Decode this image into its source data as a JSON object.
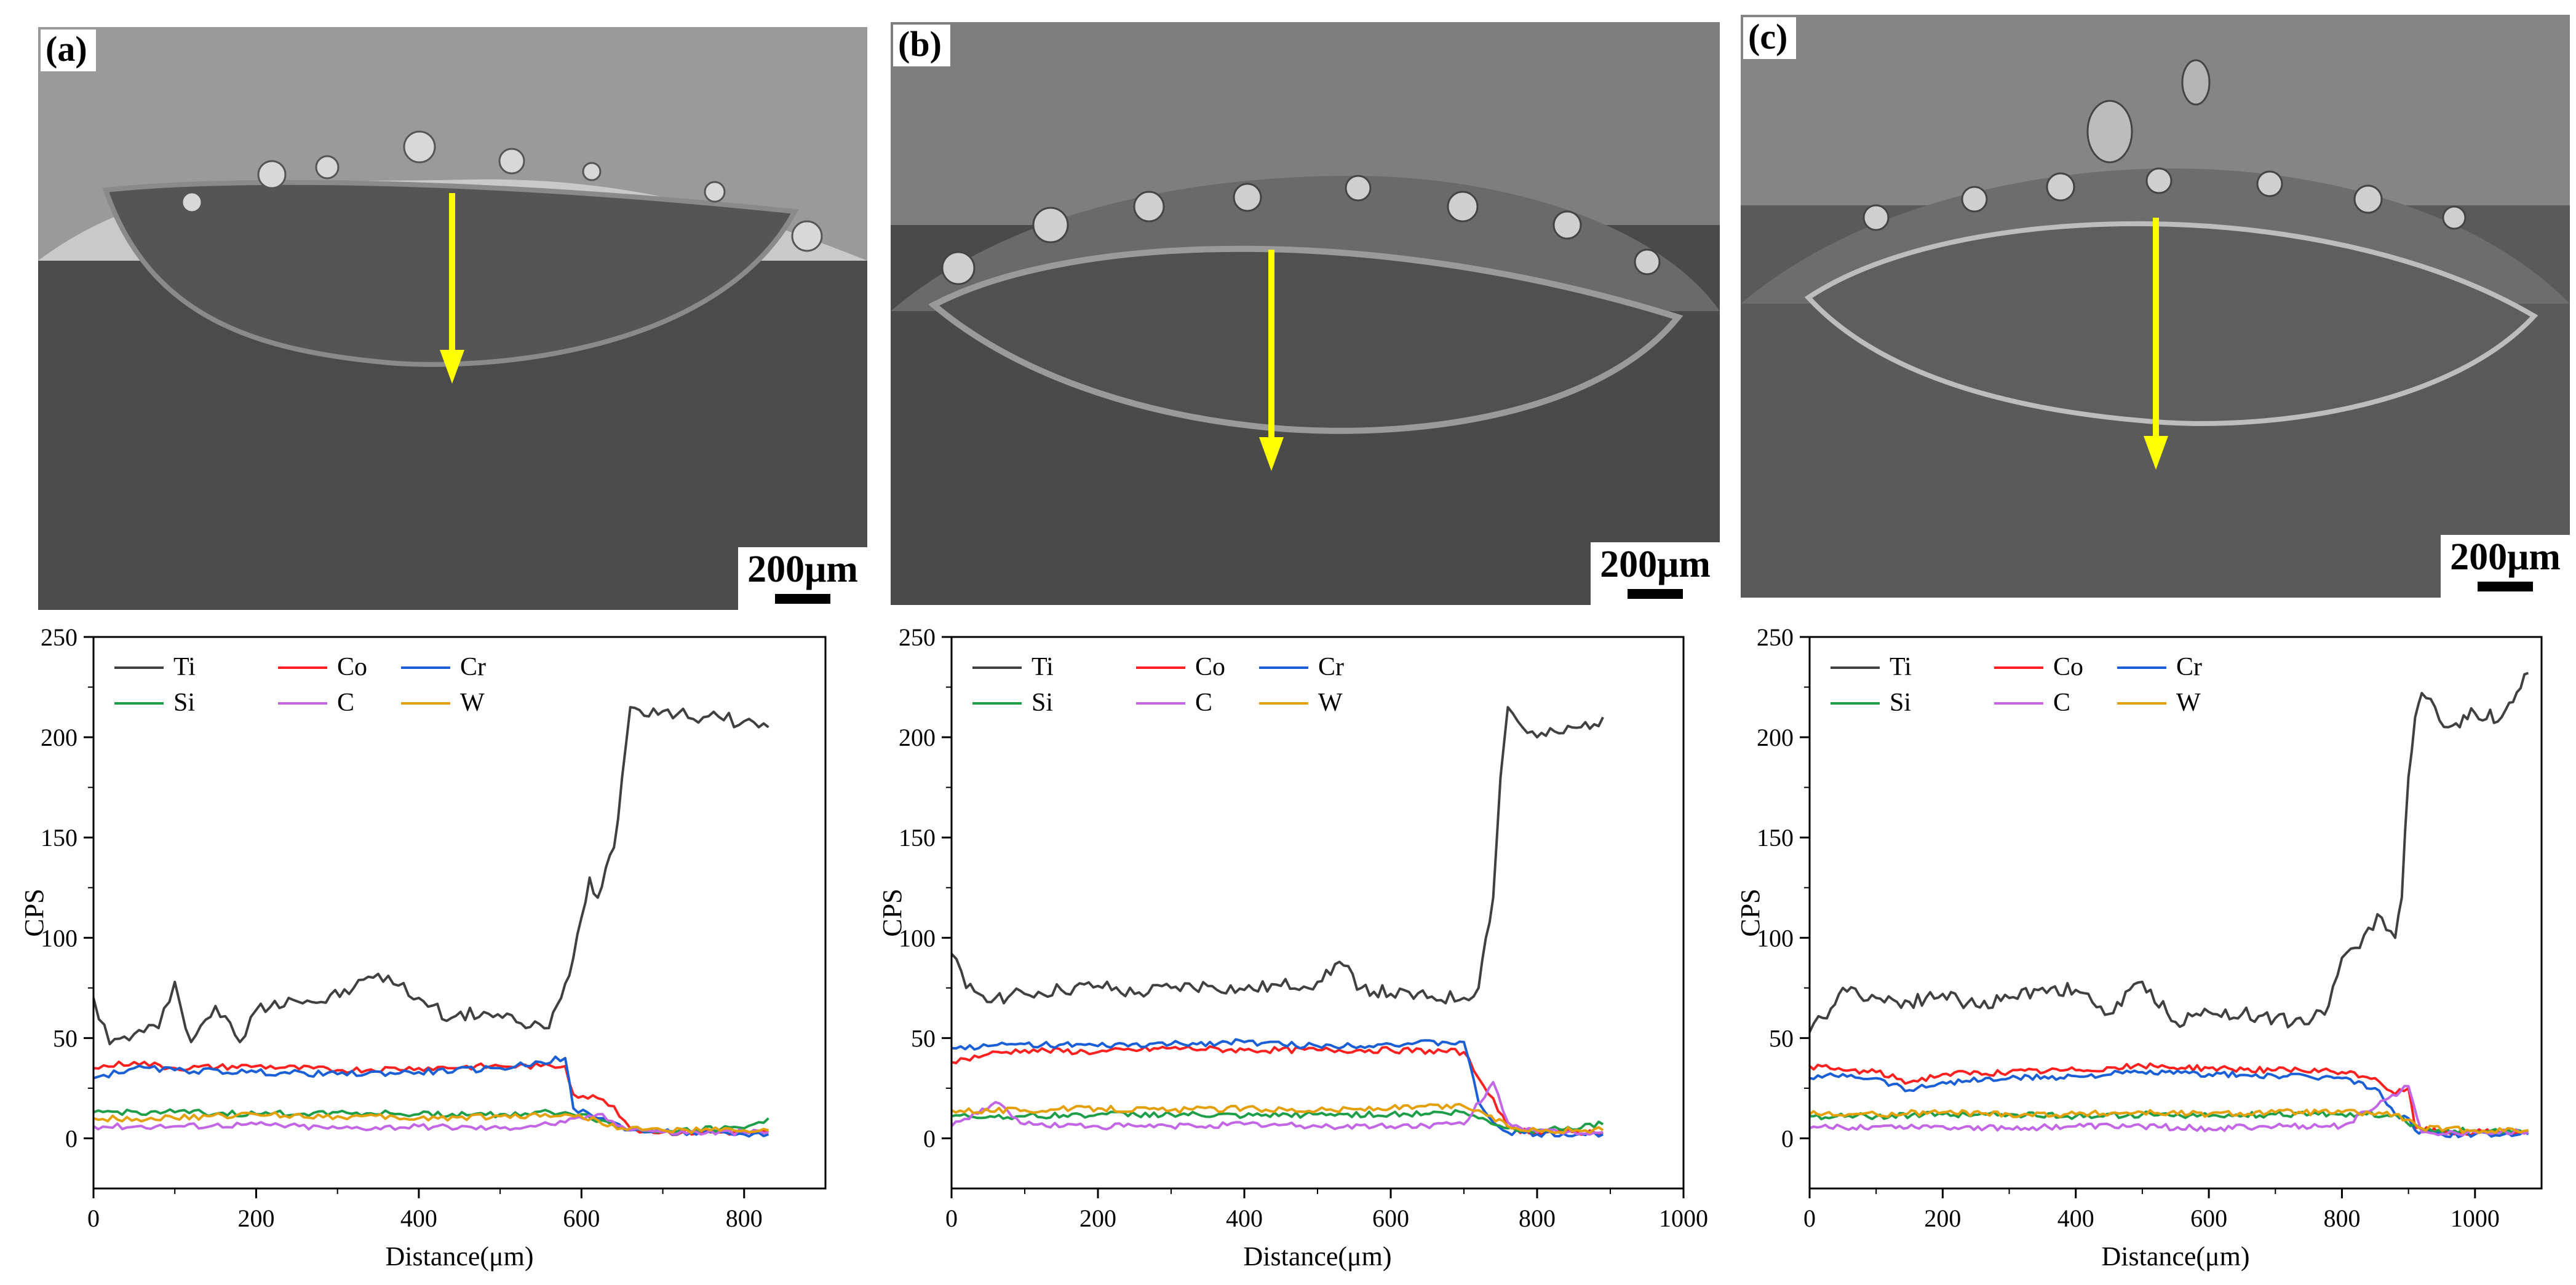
{
  "panels": [
    {
      "label": "(a)",
      "scale_text": "200μm"
    },
    {
      "label": "(b)",
      "scale_text": "200μm"
    },
    {
      "label": "(c)",
      "scale_text": "200μm"
    }
  ],
  "colors": {
    "Ti": "#404040",
    "Co": "#ff2020",
    "Cr": "#1a5fd6",
    "Si": "#1f9e4a",
    "C": "#c266e6",
    "W": "#e3a008",
    "arrow": "#ffff00",
    "sem_dark": "#4a4a4a",
    "sem_light": "#8d8d8d"
  },
  "chart_data": [
    {
      "type": "line",
      "panel": "(a)",
      "xlabel": "Distance(μm)",
      "ylabel": "CPS",
      "xlim": [
        0,
        900
      ],
      "ylim": [
        -25,
        250
      ],
      "xticks": [
        0,
        200,
        400,
        600,
        800
      ],
      "yticks": [
        0,
        50,
        100,
        150,
        200,
        250
      ],
      "legend": [
        "Ti",
        "Co",
        "Cr",
        "Si",
        "C",
        "W"
      ],
      "legend_position": "top-left",
      "series": [
        {
          "name": "Ti",
          "x": [
            0,
            20,
            50,
            80,
            100,
            120,
            150,
            180,
            200,
            240,
            280,
            320,
            350,
            400,
            440,
            480,
            520,
            560,
            575,
            590,
            600,
            610,
            620,
            630,
            640,
            650,
            660,
            700,
            750,
            800,
            830
          ],
          "y": [
            70,
            47,
            52,
            55,
            78,
            48,
            66,
            48,
            64,
            70,
            68,
            75,
            82,
            70,
            60,
            63,
            58,
            55,
            70,
            90,
            110,
            130,
            120,
            135,
            145,
            180,
            215,
            213,
            210,
            208,
            205
          ]
        },
        {
          "name": "Co",
          "x": [
            0,
            50,
            100,
            200,
            300,
            400,
            500,
            550,
            580,
            590,
            620,
            640,
            660,
            700,
            800,
            830
          ],
          "y": [
            35,
            38,
            35,
            36,
            34,
            35,
            36,
            36,
            36,
            22,
            20,
            16,
            5,
            3,
            3,
            3
          ]
        },
        {
          "name": "Cr",
          "x": [
            0,
            50,
            100,
            200,
            300,
            400,
            500,
            550,
            580,
            590,
            620,
            640,
            660,
            700,
            800,
            830
          ],
          "y": [
            30,
            35,
            34,
            33,
            32,
            33,
            35,
            38,
            40,
            15,
            10,
            8,
            4,
            3,
            2,
            2
          ]
        },
        {
          "name": "Si",
          "x": [
            0,
            100,
            200,
            300,
            400,
            500,
            580,
            600,
            650,
            700,
            800,
            830
          ],
          "y": [
            13,
            13,
            12,
            13,
            12,
            12,
            13,
            12,
            5,
            4,
            5,
            10
          ]
        },
        {
          "name": "C",
          "x": [
            0,
            100,
            200,
            300,
            400,
            500,
            580,
            620,
            650,
            700,
            800,
            830
          ],
          "y": [
            6,
            6,
            7,
            5,
            6,
            5,
            8,
            12,
            6,
            3,
            3,
            3
          ]
        },
        {
          "name": "W",
          "x": [
            0,
            100,
            200,
            300,
            400,
            500,
            580,
            620,
            650,
            700,
            800,
            830
          ],
          "y": [
            10,
            10,
            12,
            11,
            10,
            11,
            12,
            9,
            5,
            4,
            4,
            4
          ]
        }
      ]
    },
    {
      "type": "line",
      "panel": "(b)",
      "xlabel": "Distance(μm)",
      "ylabel": "CPS",
      "xlim": [
        0,
        1000
      ],
      "ylim": [
        -25,
        250
      ],
      "xticks": [
        0,
        200,
        400,
        600,
        800,
        1000
      ],
      "yticks": [
        0,
        50,
        100,
        150,
        200,
        250
      ],
      "legend": [
        "Ti",
        "Co",
        "Cr",
        "Si",
        "C",
        "W"
      ],
      "legend_position": "top-left",
      "series": [
        {
          "name": "Ti",
          "x": [
            0,
            20,
            60,
            100,
            150,
            200,
            250,
            300,
            350,
            400,
            450,
            500,
            530,
            560,
            600,
            650,
            700,
            720,
            730,
            740,
            750,
            760,
            780,
            800,
            830,
            860,
            890
          ],
          "y": [
            92,
            75,
            70,
            72,
            74,
            76,
            72,
            75,
            76,
            74,
            76,
            78,
            88,
            75,
            72,
            70,
            70,
            75,
            100,
            120,
            180,
            215,
            205,
            200,
            202,
            205,
            210
          ]
        },
        {
          "name": "Co",
          "x": [
            0,
            50,
            100,
            200,
            300,
            400,
            500,
            600,
            700,
            720,
            740,
            760,
            800,
            890
          ],
          "y": [
            38,
            42,
            44,
            43,
            45,
            44,
            44,
            44,
            43,
            30,
            20,
            5,
            3,
            3
          ]
        },
        {
          "name": "Cr",
          "x": [
            0,
            50,
            100,
            200,
            300,
            400,
            500,
            600,
            700,
            720,
            740,
            760,
            800,
            890
          ],
          "y": [
            45,
            46,
            47,
            46,
            47,
            48,
            46,
            47,
            48,
            18,
            8,
            3,
            2,
            2
          ]
        },
        {
          "name": "Si",
          "x": [
            0,
            100,
            200,
            300,
            400,
            500,
            600,
            700,
            720,
            760,
            800,
            890
          ],
          "y": [
            11,
            11,
            12,
            12,
            11,
            12,
            12,
            13,
            10,
            5,
            4,
            7
          ]
        },
        {
          "name": "C",
          "x": [
            0,
            60,
            100,
            200,
            300,
            400,
            500,
            600,
            700,
            740,
            760,
            800,
            890
          ],
          "y": [
            6,
            18,
            7,
            6,
            6,
            7,
            6,
            6,
            7,
            28,
            8,
            3,
            3
          ]
        },
        {
          "name": "W",
          "x": [
            0,
            100,
            200,
            300,
            400,
            500,
            600,
            700,
            720,
            760,
            800,
            890
          ],
          "y": [
            14,
            14,
            15,
            14,
            15,
            14,
            15,
            16,
            14,
            6,
            4,
            4
          ]
        }
      ]
    },
    {
      "type": "line",
      "panel": "(c)",
      "xlabel": "Distance(μm)",
      "ylabel": "CPS",
      "xlim": [
        0,
        1100
      ],
      "ylim": [
        -25,
        250
      ],
      "xticks": [
        0,
        200,
        400,
        600,
        800,
        1000
      ],
      "yticks": [
        0,
        50,
        100,
        150,
        200,
        250
      ],
      "legend": [
        "Ti",
        "Co",
        "Cr",
        "Si",
        "C",
        "W"
      ],
      "legend_position": "top-left",
      "series": [
        {
          "name": "Ti",
          "x": [
            0,
            20,
            50,
            100,
            150,
            200,
            250,
            300,
            350,
            400,
            450,
            500,
            550,
            600,
            650,
            700,
            750,
            780,
            800,
            820,
            840,
            860,
            880,
            890,
            900,
            910,
            920,
            940,
            960,
            1000,
            1040,
            1080
          ],
          "y": [
            53,
            60,
            75,
            70,
            68,
            72,
            66,
            70,
            75,
            74,
            62,
            78,
            58,
            63,
            62,
            60,
            57,
            66,
            90,
            95,
            105,
            110,
            100,
            120,
            180,
            210,
            222,
            215,
            205,
            212,
            210,
            232
          ]
        },
        {
          "name": "Co",
          "x": [
            0,
            50,
            100,
            150,
            200,
            300,
            400,
            500,
            600,
            700,
            800,
            850,
            880,
            900,
            910,
            950,
            1000,
            1080
          ],
          "y": [
            36,
            34,
            33,
            28,
            32,
            33,
            34,
            36,
            35,
            34,
            33,
            30,
            22,
            25,
            5,
            3,
            3,
            3
          ]
        },
        {
          "name": "Cr",
          "x": [
            0,
            50,
            100,
            150,
            200,
            300,
            400,
            500,
            600,
            700,
            800,
            850,
            880,
            900,
            910,
            950,
            1000,
            1080
          ],
          "y": [
            30,
            32,
            30,
            24,
            28,
            30,
            31,
            33,
            32,
            31,
            30,
            25,
            12,
            10,
            4,
            2,
            2,
            2
          ]
        },
        {
          "name": "Si",
          "x": [
            0,
            100,
            200,
            300,
            400,
            500,
            600,
            700,
            800,
            880,
            920,
            1000,
            1080
          ],
          "y": [
            11,
            11,
            12,
            12,
            11,
            12,
            11,
            12,
            12,
            12,
            4,
            4,
            4
          ]
        },
        {
          "name": "C",
          "x": [
            0,
            100,
            200,
            300,
            400,
            500,
            600,
            700,
            800,
            870,
            900,
            920,
            1000,
            1080
          ],
          "y": [
            5,
            6,
            6,
            5,
            6,
            6,
            5,
            6,
            6,
            20,
            26,
            3,
            3,
            3
          ]
        },
        {
          "name": "W",
          "x": [
            0,
            100,
            200,
            300,
            400,
            500,
            600,
            700,
            800,
            880,
            920,
            1000,
            1080
          ],
          "y": [
            12,
            12,
            13,
            12,
            12,
            13,
            12,
            13,
            13,
            12,
            5,
            4,
            4
          ]
        }
      ]
    }
  ]
}
